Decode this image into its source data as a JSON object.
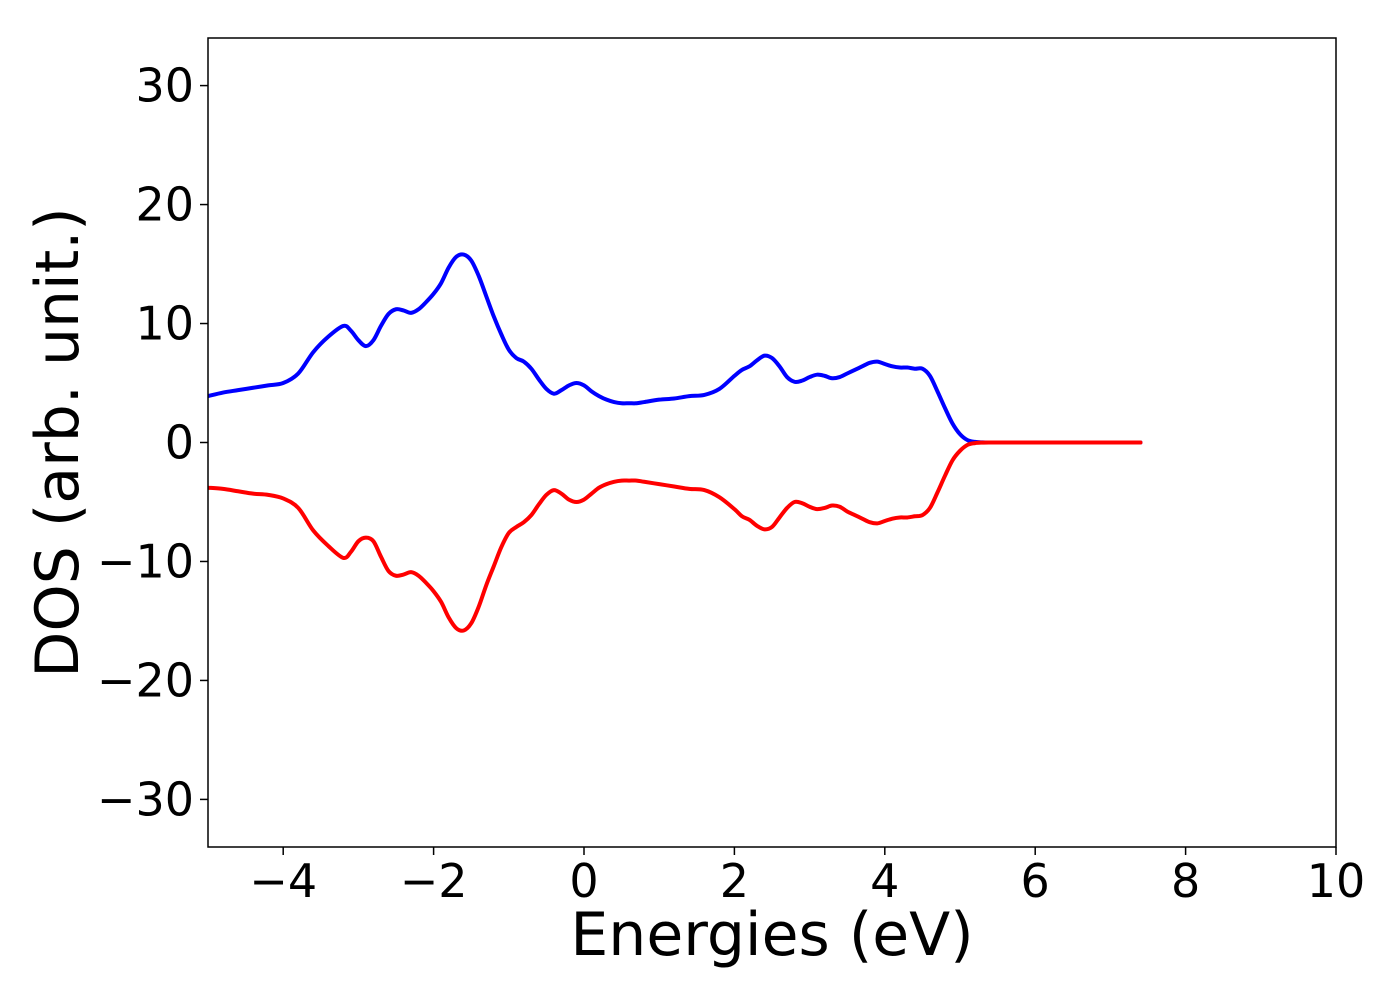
{
  "chart_data": {
    "type": "line",
    "title": "",
    "xlabel": "Energies (eV)",
    "ylabel": "DOS (arb. unit.)",
    "xlim": [
      -5,
      10
    ],
    "ylim": [
      -34,
      34
    ],
    "x_ticks": [
      -4,
      -2,
      0,
      2,
      4,
      6,
      8,
      10
    ],
    "x_tick_labels": [
      "−4",
      "−2",
      "0",
      "2",
      "4",
      "6",
      "8",
      "10"
    ],
    "y_ticks": [
      30,
      20,
      10,
      0,
      -10,
      -20,
      -30
    ],
    "y_tick_labels": [
      "30",
      "20",
      "10",
      "0",
      "−10",
      "−20",
      "−30"
    ],
    "grid": false,
    "legend": "none",
    "series": [
      {
        "color": "#0000ff",
        "x": [
          -5.0,
          -4.8,
          -4.6,
          -4.4,
          -4.2,
          -4.0,
          -3.8,
          -3.6,
          -3.4,
          -3.2,
          -3.1,
          -3.0,
          -2.9,
          -2.8,
          -2.7,
          -2.6,
          -2.5,
          -2.4,
          -2.3,
          -2.2,
          -2.1,
          -2.0,
          -1.9,
          -1.8,
          -1.7,
          -1.6,
          -1.5,
          -1.4,
          -1.3,
          -1.2,
          -1.1,
          -1.0,
          -0.9,
          -0.8,
          -0.7,
          -0.6,
          -0.5,
          -0.4,
          -0.3,
          -0.2,
          -0.1,
          0.0,
          0.1,
          0.2,
          0.3,
          0.4,
          0.5,
          0.6,
          0.7,
          0.8,
          1.0,
          1.2,
          1.4,
          1.6,
          1.8,
          2.0,
          2.1,
          2.2,
          2.3,
          2.4,
          2.5,
          2.6,
          2.7,
          2.8,
          2.9,
          3.0,
          3.1,
          3.2,
          3.3,
          3.4,
          3.5,
          3.6,
          3.7,
          3.8,
          3.9,
          4.0,
          4.1,
          4.2,
          4.3,
          4.4,
          4.5,
          4.6,
          4.7,
          4.8,
          4.9,
          5.0,
          5.1,
          5.2,
          5.3,
          5.4,
          5.5,
          5.6,
          5.8,
          6.0,
          6.5,
          7.0,
          7.4
        ],
        "y": [
          3.9,
          4.2,
          4.4,
          4.6,
          4.8,
          5.0,
          5.8,
          7.6,
          8.9,
          9.8,
          9.4,
          8.6,
          8.1,
          8.6,
          9.8,
          10.8,
          11.2,
          11.1,
          10.9,
          11.2,
          11.8,
          12.5,
          13.4,
          14.7,
          15.6,
          15.8,
          15.3,
          14.0,
          12.3,
          10.6,
          9.1,
          7.8,
          7.1,
          6.8,
          6.2,
          5.3,
          4.5,
          4.1,
          4.4,
          4.8,
          5.0,
          4.8,
          4.3,
          3.9,
          3.6,
          3.4,
          3.3,
          3.3,
          3.3,
          3.4,
          3.6,
          3.7,
          3.9,
          4.0,
          4.5,
          5.6,
          6.1,
          6.4,
          6.9,
          7.3,
          7.1,
          6.4,
          5.5,
          5.1,
          5.2,
          5.5,
          5.7,
          5.6,
          5.4,
          5.5,
          5.8,
          6.1,
          6.4,
          6.7,
          6.8,
          6.6,
          6.4,
          6.3,
          6.3,
          6.2,
          6.2,
          5.6,
          4.3,
          2.9,
          1.6,
          0.7,
          0.2,
          0.05,
          0.01,
          0.0,
          0.0,
          0.0,
          0.0,
          0.0,
          0.0,
          0.0,
          0.0
        ]
      },
      {
        "color": "#ff0000",
        "x": [
          -5.0,
          -4.8,
          -4.6,
          -4.4,
          -4.2,
          -4.0,
          -3.8,
          -3.6,
          -3.4,
          -3.2,
          -3.1,
          -3.0,
          -2.9,
          -2.8,
          -2.7,
          -2.6,
          -2.5,
          -2.4,
          -2.3,
          -2.2,
          -2.1,
          -2.0,
          -1.9,
          -1.8,
          -1.7,
          -1.6,
          -1.5,
          -1.4,
          -1.3,
          -1.2,
          -1.1,
          -1.0,
          -0.9,
          -0.8,
          -0.7,
          -0.6,
          -0.5,
          -0.4,
          -0.3,
          -0.2,
          -0.1,
          0.0,
          0.1,
          0.2,
          0.3,
          0.4,
          0.5,
          0.6,
          0.7,
          0.8,
          1.0,
          1.2,
          1.4,
          1.6,
          1.8,
          2.0,
          2.1,
          2.2,
          2.3,
          2.4,
          2.5,
          2.6,
          2.7,
          2.8,
          2.9,
          3.0,
          3.1,
          3.2,
          3.3,
          3.4,
          3.5,
          3.6,
          3.7,
          3.8,
          3.9,
          4.0,
          4.1,
          4.2,
          4.3,
          4.4,
          4.5,
          4.6,
          4.7,
          4.8,
          4.9,
          5.0,
          5.1,
          5.2,
          5.3,
          5.4,
          5.5,
          5.6,
          5.8,
          6.0,
          6.5,
          7.0,
          7.4
        ],
        "y": [
          -3.8,
          -3.9,
          -4.1,
          -4.3,
          -4.4,
          -4.7,
          -5.5,
          -7.4,
          -8.7,
          -9.7,
          -9.2,
          -8.3,
          -8.0,
          -8.3,
          -9.6,
          -10.8,
          -11.2,
          -11.1,
          -10.9,
          -11.2,
          -11.8,
          -12.5,
          -13.4,
          -14.7,
          -15.6,
          -15.8,
          -15.2,
          -13.8,
          -12.0,
          -10.4,
          -8.8,
          -7.6,
          -7.1,
          -6.7,
          -6.1,
          -5.2,
          -4.4,
          -4.0,
          -4.3,
          -4.8,
          -5.0,
          -4.8,
          -4.3,
          -3.8,
          -3.5,
          -3.3,
          -3.2,
          -3.2,
          -3.2,
          -3.3,
          -3.5,
          -3.7,
          -3.9,
          -4.0,
          -4.6,
          -5.6,
          -6.2,
          -6.5,
          -7.0,
          -7.3,
          -7.1,
          -6.3,
          -5.5,
          -5.0,
          -5.1,
          -5.4,
          -5.6,
          -5.5,
          -5.3,
          -5.4,
          -5.8,
          -6.1,
          -6.4,
          -6.7,
          -6.8,
          -6.6,
          -6.4,
          -6.3,
          -6.3,
          -6.2,
          -6.1,
          -5.5,
          -4.2,
          -2.8,
          -1.5,
          -0.7,
          -0.2,
          -0.05,
          -0.01,
          0.0,
          0.0,
          0.0,
          0.0,
          0.0,
          0.0,
          0.0,
          0.0
        ]
      }
    ]
  }
}
